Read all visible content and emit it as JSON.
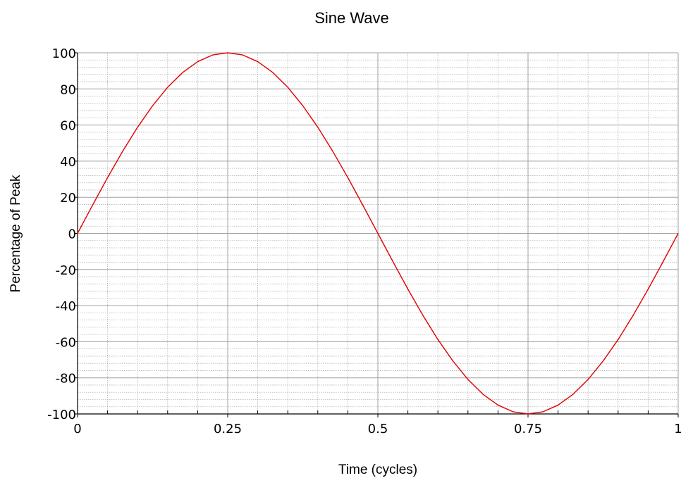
{
  "chart_data": {
    "type": "line",
    "title": "Sine Wave",
    "xlabel": "Time (cycles)",
    "ylabel": "Percentage of Peak",
    "xlim": [
      0,
      1
    ],
    "ylim": [
      -100,
      100
    ],
    "x_ticks": [
      0,
      0.25,
      0.5,
      0.75,
      1
    ],
    "x_tick_labels": [
      "0",
      "0.25",
      "0.5",
      "0.75",
      "1"
    ],
    "y_ticks": [
      100,
      80,
      60,
      40,
      20,
      0,
      -20,
      -40,
      -60,
      -80,
      -100
    ],
    "y_tick_labels": [
      "100",
      "80",
      "60",
      "40",
      "20",
      "0",
      "-20",
      "-40",
      "-60",
      "-80",
      "-100"
    ],
    "x_minor_step": 0.05,
    "y_minor_step": 4,
    "grid": true,
    "minor_grid": true,
    "legend": "none",
    "series": [
      {
        "color": "#e00000",
        "x": [
          0,
          0.025,
          0.05,
          0.075,
          0.1,
          0.125,
          0.15,
          0.175,
          0.2,
          0.225,
          0.25,
          0.275,
          0.3,
          0.325,
          0.35,
          0.375,
          0.4,
          0.425,
          0.45,
          0.475,
          0.5,
          0.525,
          0.55,
          0.575,
          0.6,
          0.625,
          0.65,
          0.675,
          0.7,
          0.725,
          0.75,
          0.775,
          0.8,
          0.825,
          0.85,
          0.875,
          0.9,
          0.925,
          0.95,
          0.975,
          1
        ],
        "values": [
          0,
          15.6,
          30.9,
          45.4,
          58.8,
          70.7,
          80.9,
          89.1,
          95.1,
          98.8,
          100,
          98.8,
          95.1,
          89.1,
          80.9,
          70.7,
          58.8,
          45.4,
          30.9,
          15.6,
          0,
          -15.6,
          -30.9,
          -45.4,
          -58.8,
          -70.7,
          -80.9,
          -89.1,
          -95.1,
          -98.8,
          -100,
          -98.8,
          -95.1,
          -89.1,
          -80.9,
          -70.7,
          -58.8,
          -45.4,
          -30.9,
          -15.6,
          0
        ]
      }
    ]
  },
  "colors": {
    "line": "#e00000",
    "major_grid": "#a0a0a0",
    "minor_grid": "#b4b4b4",
    "axis": "#000000"
  }
}
